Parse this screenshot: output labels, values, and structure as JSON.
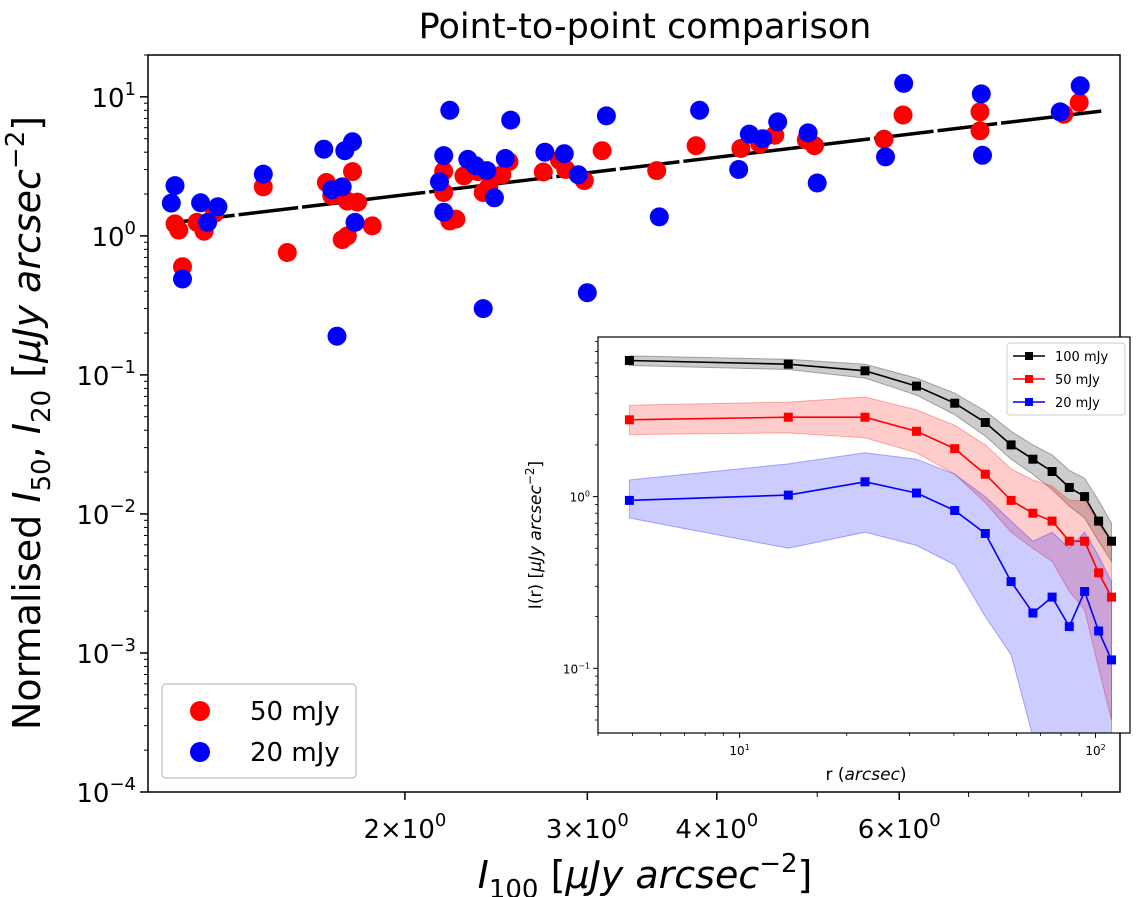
{
  "chart_data": [
    {
      "type": "scatter",
      "title": "Point-to-point comparison",
      "xlabel": "I_100 [μJy arcsec^-2]",
      "ylabel": "Normalised I_50, I_20 [μJy arcsec^-2]",
      "xscale": "log",
      "yscale": "log",
      "xlim": [
        1.13,
        9.8
      ],
      "ylim": [
        0.0001,
        20
      ],
      "xticks": [
        {
          "value": 2,
          "mantissa": "2",
          "base": "10",
          "exp": "0"
        },
        {
          "value": 3,
          "mantissa": "3",
          "base": "10",
          "exp": "0"
        },
        {
          "value": 4,
          "mantissa": "4",
          "base": "10",
          "exp": "0"
        },
        {
          "value": 6,
          "mantissa": "6",
          "base": "10",
          "exp": "0"
        }
      ],
      "yticks": [
        {
          "value": 10,
          "base": "10",
          "exp": "1"
        },
        {
          "value": 1,
          "base": "10",
          "exp": "0"
        },
        {
          "value": 0.1,
          "base": "10",
          "exp": "−1"
        },
        {
          "value": 0.01,
          "base": "10",
          "exp": "−2"
        },
        {
          "value": 0.001,
          "base": "10",
          "exp": "−3"
        },
        {
          "value": 0.0001,
          "base": "10",
          "exp": "−4"
        }
      ],
      "legend_position": "lower-left",
      "fit_line": {
        "color": "#000000",
        "style": "dashed",
        "x": [
          1.2,
          9.4
        ],
        "y": [
          1.25,
          7.9
        ]
      },
      "series": [
        {
          "name": "50 mJy",
          "color": "#ff0000",
          "points": [
            [
              1.2,
              1.22
            ],
            [
              1.21,
              1.1
            ],
            [
              1.22,
              0.6
            ],
            [
              1.26,
              1.25
            ],
            [
              1.28,
              1.08
            ],
            [
              1.31,
              1.45
            ],
            [
              1.46,
              2.25
            ],
            [
              1.54,
              0.76
            ],
            [
              1.68,
              2.42
            ],
            [
              1.7,
              1.95
            ],
            [
              1.74,
              0.94
            ],
            [
              1.76,
              1.0
            ],
            [
              1.76,
              1.78
            ],
            [
              1.78,
              2.9
            ],
            [
              1.8,
              1.75
            ],
            [
              1.86,
              1.18
            ],
            [
              2.18,
              2.05
            ],
            [
              2.18,
              2.92
            ],
            [
              2.21,
              1.28
            ],
            [
              2.24,
              1.32
            ],
            [
              2.28,
              2.7
            ],
            [
              2.35,
              2.9
            ],
            [
              2.38,
              2.05
            ],
            [
              2.41,
              2.25
            ],
            [
              2.48,
              2.75
            ],
            [
              2.52,
              3.42
            ],
            [
              2.72,
              2.88
            ],
            [
              2.82,
              3.5
            ],
            [
              2.86,
              3.0
            ],
            [
              2.98,
              2.5
            ],
            [
              3.1,
              4.1
            ],
            [
              3.5,
              2.95
            ],
            [
              3.82,
              4.45
            ],
            [
              4.22,
              4.25
            ],
            [
              4.4,
              4.6
            ],
            [
              4.55,
              5.3
            ],
            [
              4.88,
              4.9
            ],
            [
              4.97,
              4.45
            ],
            [
              5.8,
              4.95
            ],
            [
              6.05,
              7.4
            ],
            [
              7.18,
              7.8
            ],
            [
              7.18,
              5.7
            ],
            [
              8.65,
              7.5
            ],
            [
              8.95,
              9.1
            ]
          ]
        },
        {
          "name": "20 mJy",
          "color": "#0000ff",
          "points": [
            [
              1.19,
              1.72
            ],
            [
              1.2,
              2.3
            ],
            [
              1.22,
              0.49
            ],
            [
              1.27,
              1.73
            ],
            [
              1.29,
              1.25
            ],
            [
              1.32,
              1.62
            ],
            [
              1.46,
              2.78
            ],
            [
              1.67,
              4.2
            ],
            [
              1.7,
              2.15
            ],
            [
              1.72,
              0.19
            ],
            [
              1.74,
              2.25
            ],
            [
              1.75,
              4.1
            ],
            [
              1.78,
              4.75
            ],
            [
              1.79,
              1.25
            ],
            [
              2.16,
              2.45
            ],
            [
              2.18,
              1.48
            ],
            [
              2.18,
              3.78
            ],
            [
              2.21,
              8.0
            ],
            [
              2.3,
              3.55
            ],
            [
              2.34,
              3.2
            ],
            [
              2.38,
              0.3
            ],
            [
              2.4,
              2.95
            ],
            [
              2.44,
              1.88
            ],
            [
              2.5,
              3.6
            ],
            [
              2.53,
              6.8
            ],
            [
              2.73,
              4.0
            ],
            [
              2.85,
              3.9
            ],
            [
              2.94,
              2.75
            ],
            [
              3.0,
              0.39
            ],
            [
              3.13,
              7.3
            ],
            [
              3.52,
              1.37
            ],
            [
              3.85,
              8.0
            ],
            [
              4.2,
              3.0
            ],
            [
              4.3,
              5.4
            ],
            [
              4.43,
              5.0
            ],
            [
              4.58,
              6.6
            ],
            [
              4.9,
              5.5
            ],
            [
              5.0,
              2.4
            ],
            [
              5.82,
              3.7
            ],
            [
              6.06,
              12.5
            ],
            [
              7.2,
              10.5
            ],
            [
              7.22,
              3.8
            ],
            [
              8.58,
              7.8
            ],
            [
              8.97,
              12.0
            ]
          ]
        }
      ]
    },
    {
      "type": "line",
      "title": "",
      "xlabel": "r (arcsec)",
      "ylabel": "I(r) [μJy arcsec^-2]",
      "xscale": "log",
      "yscale": "log",
      "xlim": [
        4.0,
        125
      ],
      "ylim": [
        0.042,
        8.5
      ],
      "xticks": [
        {
          "value": 10,
          "base": "10",
          "exp": "1"
        },
        {
          "value": 100,
          "base": "10",
          "exp": "2"
        }
      ],
      "yticks": [
        {
          "value": 1,
          "base": "10",
          "exp": "0"
        },
        {
          "value": 0.1,
          "base": "10",
          "exp": "−1"
        }
      ],
      "legend_position": "top-right",
      "series": [
        {
          "name": "100 mJy",
          "color": "#000000",
          "x": [
            4.9,
            13.7,
            22.5,
            31.4,
            40.2,
            49.0,
            57.9,
            66.7,
            75.5,
            84.4,
            93.2,
            102.0,
            110.9
          ],
          "y": [
            6.2,
            5.9,
            5.4,
            4.4,
            3.5,
            2.7,
            2.0,
            1.65,
            1.4,
            1.13,
            1.0,
            0.72,
            0.55
          ],
          "lower": [
            5.8,
            5.5,
            4.9,
            3.9,
            3.0,
            2.25,
            1.65,
            1.35,
            1.1,
            0.88,
            0.75,
            0.55,
            0.42
          ],
          "upper": [
            6.6,
            6.3,
            5.9,
            4.9,
            4.0,
            3.15,
            2.4,
            2.0,
            1.75,
            1.42,
            1.28,
            0.95,
            0.7
          ]
        },
        {
          "name": "50 mJy",
          "color": "#ff0000",
          "x": [
            4.9,
            13.7,
            22.5,
            31.4,
            40.2,
            49.0,
            57.9,
            66.7,
            75.5,
            84.4,
            93.2,
            102.0,
            110.9
          ],
          "y": [
            2.8,
            2.9,
            2.9,
            2.4,
            1.9,
            1.35,
            0.95,
            0.8,
            0.72,
            0.55,
            0.55,
            0.36,
            0.26
          ],
          "lower": [
            2.3,
            2.35,
            2.2,
            1.8,
            1.35,
            0.92,
            0.62,
            0.5,
            0.42,
            0.28,
            0.22,
            0.1,
            0.05
          ],
          "upper": [
            3.4,
            3.55,
            3.8,
            3.2,
            2.6,
            2.0,
            1.45,
            1.25,
            1.15,
            0.95,
            0.95,
            0.7,
            0.55
          ]
        },
        {
          "name": "20 mJy",
          "color": "#0000ff",
          "x": [
            4.9,
            13.7,
            22.5,
            31.4,
            40.2,
            49.0,
            57.9,
            66.7,
            75.5,
            84.4,
            93.2,
            102.0,
            110.9
          ],
          "y": [
            0.95,
            1.02,
            1.22,
            1.05,
            0.83,
            0.61,
            0.32,
            0.21,
            0.26,
            0.175,
            0.28,
            0.165,
            0.112
          ],
          "lower": [
            0.75,
            0.5,
            0.62,
            0.52,
            0.4,
            0.2,
            0.12,
            0.04,
            0.04,
            0.04,
            0.04,
            0.04,
            0.04
          ],
          "upper": [
            1.25,
            1.55,
            1.8,
            1.65,
            1.35,
            1.0,
            0.72,
            0.55,
            0.62,
            0.5,
            0.62,
            0.45,
            0.32
          ]
        }
      ]
    }
  ]
}
